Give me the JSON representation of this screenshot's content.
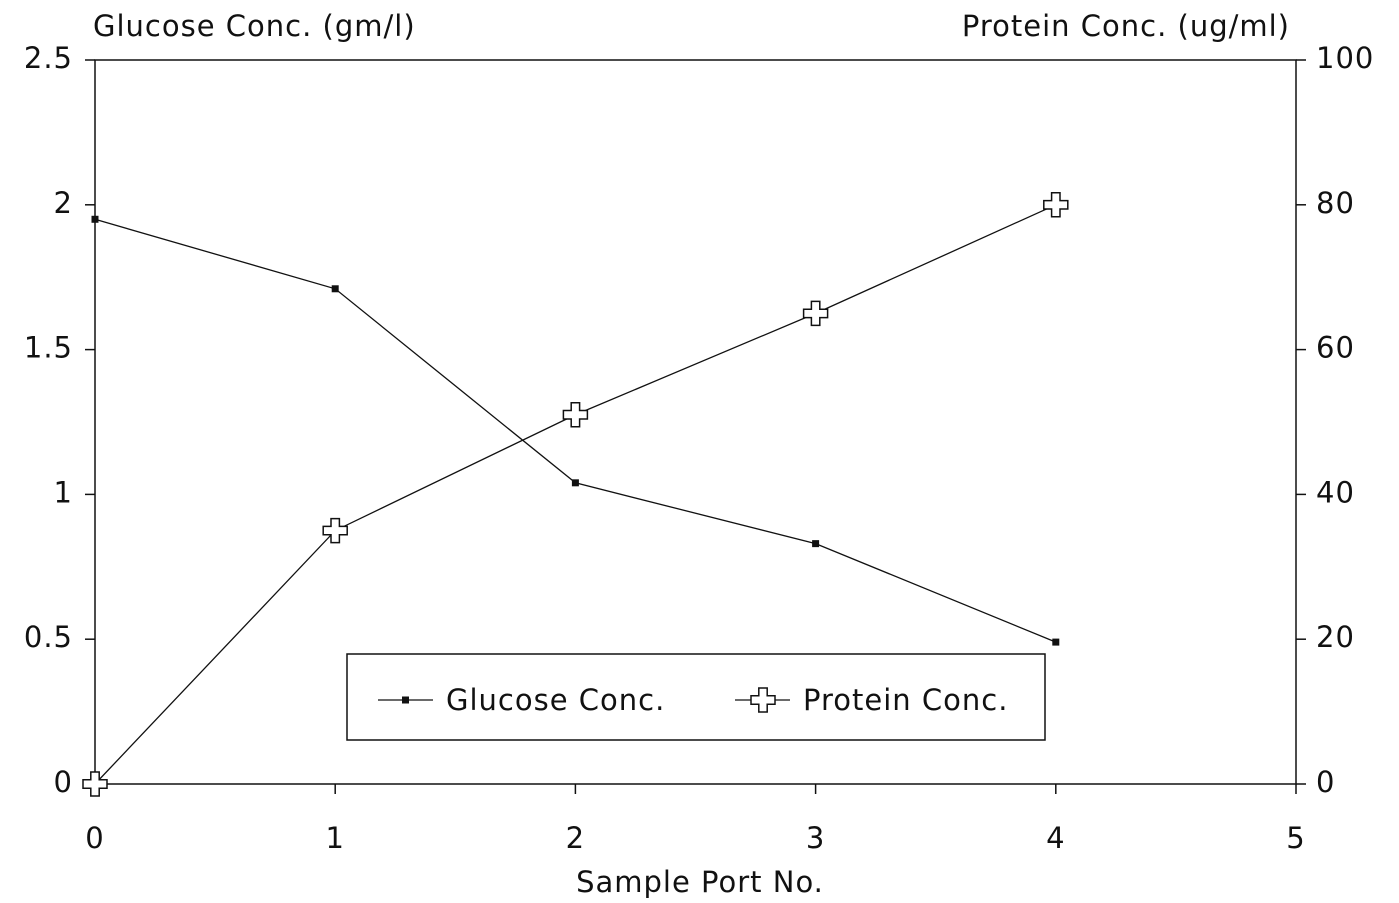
{
  "chart_data": {
    "type": "line",
    "y_axis_label": "Glucose Conc. (gm/l)",
    "y2_axis_label": "Protein Conc. (ug/ml)",
    "x_axis_label": "Sample Port No.",
    "x": [
      0,
      1,
      2,
      3,
      4
    ],
    "series": [
      {
        "name": "Glucose Conc.",
        "color": "#111111",
        "marker": "square",
        "values": [
          1.95,
          1.71,
          1.04,
          0.83,
          0.49
        ]
      },
      {
        "name": "Protein Conc.",
        "color": "#111111",
        "marker": "cross",
        "axis": "y2",
        "values": [
          0,
          35,
          51,
          65,
          80
        ]
      }
    ],
    "xlim": [
      0,
      5
    ],
    "xticks": [
      0,
      1,
      2,
      3,
      4,
      5
    ],
    "ylim": [
      0,
      2.5
    ],
    "yticks": [
      0,
      0.5,
      1,
      1.5,
      2,
      2.5
    ],
    "y2lim": [
      0,
      100
    ],
    "y2ticks": [
      0,
      20,
      40,
      60,
      80,
      100
    ],
    "legend": "lower center"
  }
}
